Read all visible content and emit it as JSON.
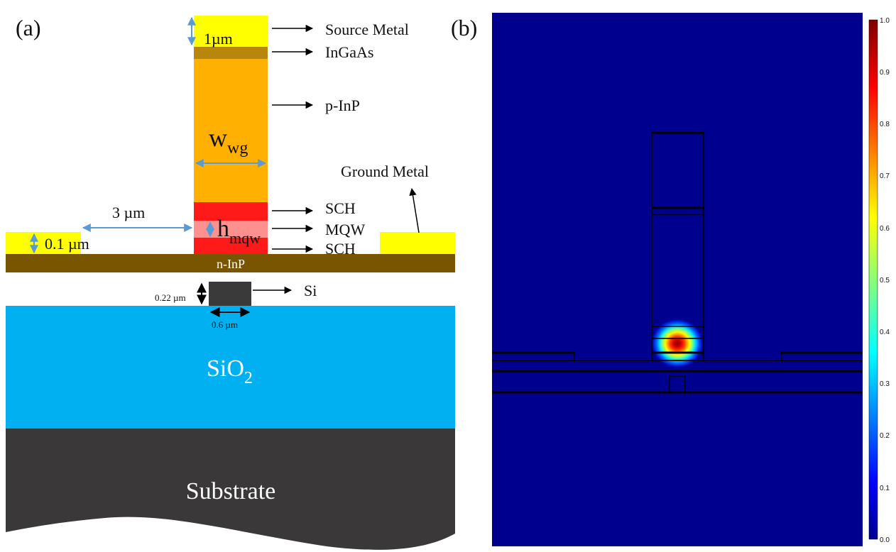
{
  "panel_a": {
    "tag": "(a)",
    "layer_labels": {
      "source_metal": "Source Metal",
      "ingaas": "InGaAs",
      "p_inp": "p-InP",
      "sch_top": "SCH",
      "mqw": "MQW",
      "sch_bottom": "SCH",
      "ground_metal": "Ground Metal",
      "n_inp": "n-InP",
      "si": "Si",
      "sio2": "SiO",
      "sio2_sub": "2",
      "substrate": "Substrate"
    },
    "dimensions": {
      "metal_thickness": "1µm",
      "w_main": "w",
      "w_sub": "wg",
      "h_main": "h",
      "h_sub": "mqw",
      "gap": "3 µm",
      "ground_thickness": "0.1 µm",
      "si_height": "0.22 µm",
      "si_width": "0.6 µm"
    },
    "colors": {
      "metal": "#ffff00",
      "ingaas": "#b8860b",
      "p_inp": "#ffb000",
      "sch": "#ff1a1a",
      "mqw": "#ff9090",
      "n_inp": "#7a5500",
      "si": "#3a3a3a",
      "sio2": "#00b0f0",
      "substrate": "#3a3838",
      "dim_arrow": "#5b9bd5"
    }
  },
  "panel_b": {
    "tag": "(b)",
    "colorbar_ticks": [
      "1.0",
      "0.9",
      "0.8",
      "0.7",
      "0.6",
      "0.5",
      "0.4",
      "0.3",
      "0.2",
      "0.1",
      "0.0"
    ],
    "colors": {
      "background": "#00008f",
      "outline": "#000000"
    }
  }
}
